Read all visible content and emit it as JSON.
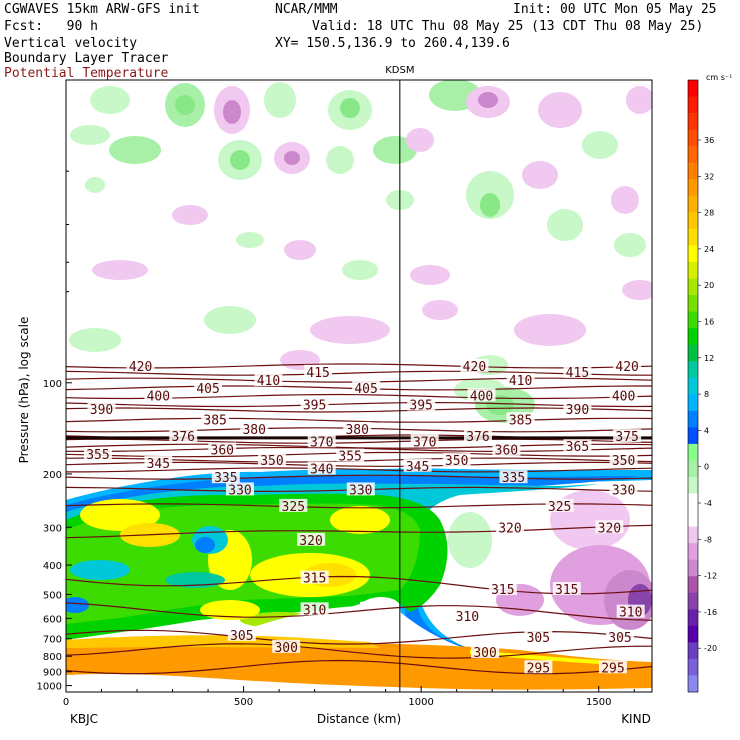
{
  "header": {
    "model": "CGWAVES 15km ARW-GFS init",
    "org": "NCAR/MMM",
    "init": "Init: 00 UTC Mon 05 May 25",
    "fcst": "Fcst:   90 h",
    "valid": "Valid: 18 UTC Thu 08 May 25 (13 CDT Thu 08 May 25)",
    "field1": "Vertical velocity",
    "xy": "XY= 150.5,136.9 to 260.4,139.6",
    "field2": "Boundary Layer Tracer",
    "field3": "Potential Temperature"
  },
  "chart_data": {
    "type": "heatmap",
    "title": "",
    "xlabel": "Distance (km)",
    "ylabel": "Pressure (hPa), log scale",
    "xlim": [
      0,
      1650
    ],
    "ylim": [
      1050,
      10
    ],
    "y_scale": "log",
    "x_ticks": [
      "0",
      "500",
      "1000",
      "1500"
    ],
    "y_ticks": [
      "100",
      "200",
      "300",
      "400",
      "500",
      "600",
      "700",
      "800",
      "900",
      "1000"
    ],
    "left_station": "KBJC",
    "right_station": "KIND",
    "mid_station": "KDSM",
    "mid_station_x": 940,
    "colorbar": {
      "unit": "cm s⁻¹",
      "labels": [
        "36",
        "32",
        "28",
        "24",
        "20",
        "16",
        "12",
        "8",
        "4",
        "0",
        "-4",
        "-8",
        "-12",
        "-16",
        "-20"
      ],
      "colors": [
        "#ff0000",
        "#ff1a00",
        "#ff3300",
        "#ff4d00",
        "#ff6600",
        "#ff7f00",
        "#ff9900",
        "#ffb000",
        "#ffc800",
        "#ffe000",
        "#ffff00",
        "#d8f000",
        "#a8e800",
        "#78e000",
        "#3cdc00",
        "#00d200",
        "#00c040",
        "#00c8a0",
        "#00c8d8",
        "#00b4ff",
        "#0080ff",
        "#0050ff",
        "#88ff88",
        "#a8f0a8",
        "#c8f8c8",
        "#ffffff",
        "#ffffff",
        "#f0c8f0",
        "#e0a0e0",
        "#cc88cc",
        "#aa55aa",
        "#8844aa",
        "#6622aa",
        "#5500aa",
        "#6a3fc0",
        "#7a60d8",
        "#8888ee"
      ]
    },
    "theta_isentropes": [
      295,
      300,
      305,
      310,
      315,
      320,
      325,
      330,
      335,
      340,
      345,
      350,
      355,
      360,
      365,
      370,
      375,
      380,
      385,
      390,
      395,
      400,
      405,
      410,
      415,
      420
    ],
    "theta_labels": [
      {
        "theta": "420",
        "x": 210,
        "p": 88
      },
      {
        "theta": "415",
        "x": 710,
        "p": 92
      },
      {
        "theta": "420",
        "x": 1150,
        "p": 88
      },
      {
        "theta": "415",
        "x": 1440,
        "p": 92
      },
      {
        "theta": "420",
        "x": 1580,
        "p": 88
      },
      {
        "theta": "400",
        "x": 260,
        "p": 110
      },
      {
        "theta": "405",
        "x": 400,
        "p": 104
      },
      {
        "theta": "410",
        "x": 570,
        "p": 98
      },
      {
        "theta": "405",
        "x": 845,
        "p": 104
      },
      {
        "theta": "400",
        "x": 1170,
        "p": 110
      },
      {
        "theta": "410",
        "x": 1280,
        "p": 98
      },
      {
        "theta": "400",
        "x": 1570,
        "p": 110
      },
      {
        "theta": "390",
        "x": 100,
        "p": 122
      },
      {
        "theta": "395",
        "x": 700,
        "p": 118
      },
      {
        "theta": "395",
        "x": 1000,
        "p": 118
      },
      {
        "theta": "390",
        "x": 1440,
        "p": 122
      },
      {
        "theta": "385",
        "x": 420,
        "p": 132
      },
      {
        "theta": "380",
        "x": 530,
        "p": 142
      },
      {
        "theta": "380",
        "x": 820,
        "p": 142
      },
      {
        "theta": "385",
        "x": 1280,
        "p": 132
      },
      {
        "theta": "376",
        "x": 330,
        "p": 150
      },
      {
        "theta": "370",
        "x": 720,
        "p": 156
      },
      {
        "theta": "370",
        "x": 1010,
        "p": 156
      },
      {
        "theta": "376",
        "x": 1160,
        "p": 150
      },
      {
        "theta": "365",
        "x": 1440,
        "p": 162
      },
      {
        "theta": "375",
        "x": 1580,
        "p": 150
      },
      {
        "theta": "355",
        "x": 90,
        "p": 172
      },
      {
        "theta": "360",
        "x": 440,
        "p": 166
      },
      {
        "theta": "355",
        "x": 800,
        "p": 174
      },
      {
        "theta": "360",
        "x": 1240,
        "p": 166
      },
      {
        "theta": "345",
        "x": 260,
        "p": 184
      },
      {
        "theta": "350",
        "x": 580,
        "p": 180
      },
      {
        "theta": "340",
        "x": 720,
        "p": 192
      },
      {
        "theta": "345",
        "x": 990,
        "p": 188
      },
      {
        "theta": "350",
        "x": 1100,
        "p": 180
      },
      {
        "theta": "350",
        "x": 1570,
        "p": 180
      },
      {
        "theta": "335",
        "x": 450,
        "p": 205
      },
      {
        "theta": "335",
        "x": 1260,
        "p": 205
      },
      {
        "theta": "330",
        "x": 490,
        "p": 225
      },
      {
        "theta": "330",
        "x": 830,
        "p": 225
      },
      {
        "theta": "330",
        "x": 1570,
        "p": 225
      },
      {
        "theta": "325",
        "x": 640,
        "p": 255
      },
      {
        "theta": "325",
        "x": 1390,
        "p": 255
      },
      {
        "theta": "320",
        "x": 690,
        "p": 330
      },
      {
        "theta": "320",
        "x": 1250,
        "p": 300
      },
      {
        "theta": "320",
        "x": 1530,
        "p": 300
      },
      {
        "theta": "315",
        "x": 700,
        "p": 440
      },
      {
        "theta": "315",
        "x": 1230,
        "p": 480
      },
      {
        "theta": "315",
        "x": 1410,
        "p": 480
      },
      {
        "theta": "310",
        "x": 700,
        "p": 560
      },
      {
        "theta": "310",
        "x": 1130,
        "p": 590
      },
      {
        "theta": "310",
        "x": 1590,
        "p": 570
      },
      {
        "theta": "305",
        "x": 495,
        "p": 680
      },
      {
        "theta": "305",
        "x": 1330,
        "p": 690
      },
      {
        "theta": "305",
        "x": 1560,
        "p": 690
      },
      {
        "theta": "300",
        "x": 620,
        "p": 745
      },
      {
        "theta": "300",
        "x": 1180,
        "p": 775
      },
      {
        "theta": "295",
        "x": 1330,
        "p": 870
      },
      {
        "theta": "295",
        "x": 1540,
        "p": 870
      }
    ]
  }
}
